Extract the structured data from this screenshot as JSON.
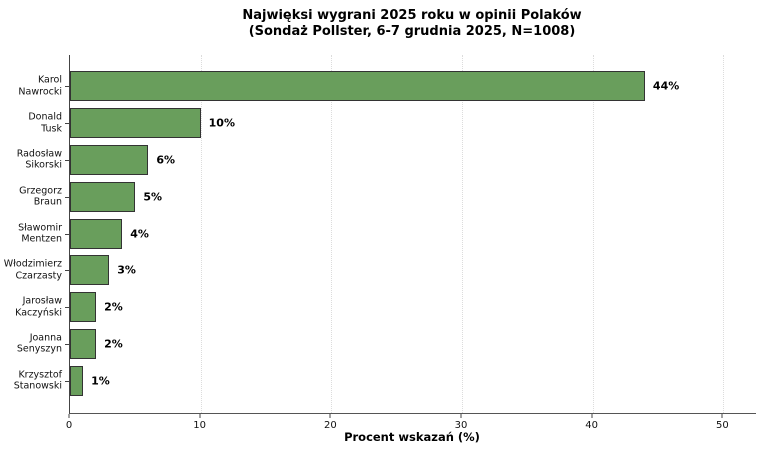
{
  "title": {
    "line1": "Najwięksi wygrani 2025 roku w opinii Polaków",
    "line2": "(Sondaż Pollster, 6-7 grudnia 2025, N=1008)"
  },
  "chart_data": {
    "type": "bar",
    "orientation": "horizontal",
    "title": "Najwięksi wygrani 2025 roku w opinii Polaków (Sondaż Pollster, 6-7 grudnia 2025, N=1008)",
    "categories": [
      "Karol Nawrocki",
      "Donald Tusk",
      "Radosław Sikorski",
      "Grzegorz Braun",
      "Sławomir Mentzen",
      "Włodzimierz Czarzasty",
      "Jarosław Kaczyński",
      "Joanna Senyszyn",
      "Krzysztof Stanowski"
    ],
    "category_lines": [
      [
        "Karol",
        "Nawrocki"
      ],
      [
        "Donald",
        "Tusk"
      ],
      [
        "Radosław",
        "Sikorski"
      ],
      [
        "Grzegorz",
        "Braun"
      ],
      [
        "Sławomir",
        "Mentzen"
      ],
      [
        "Włodzimierz",
        "Czarzasty"
      ],
      [
        "Jarosław",
        "Kaczyński"
      ],
      [
        "Joanna",
        "Senyszyn"
      ],
      [
        "Krzysztof",
        "Stanowski"
      ]
    ],
    "values": [
      44,
      10,
      6,
      5,
      4,
      3,
      2,
      2,
      1
    ],
    "value_labels": [
      "44%",
      "10%",
      "6%",
      "5%",
      "4%",
      "3%",
      "2%",
      "2%",
      "1%"
    ],
    "xlabel": "Procent wskazań (%)",
    "xticks": [
      "0",
      "10",
      "20",
      "30",
      "40",
      "50"
    ],
    "xtick_values": [
      0,
      10,
      20,
      30,
      40,
      50
    ],
    "xlim": [
      0,
      52.5
    ],
    "grid": "vertical-dotted",
    "legend": "none",
    "colors": {
      "bar_fill": "#699e5c",
      "bar_edge": "#333333",
      "grid": "#dcdcdc",
      "spine": "#444444",
      "text": "#000000"
    }
  }
}
